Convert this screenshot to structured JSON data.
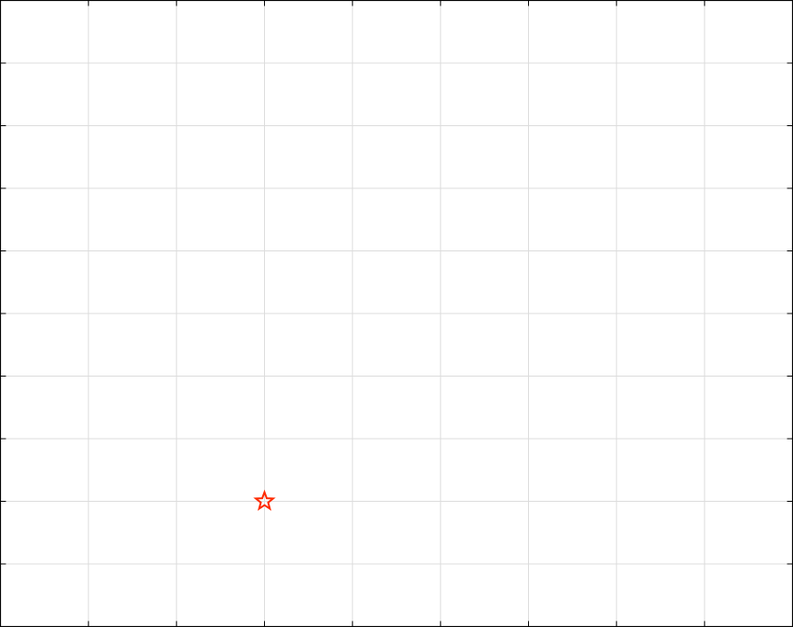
{
  "chart_data": {
    "type": "scatter",
    "title": "",
    "xlabel": "",
    "ylabel": "",
    "xlim": [
      0,
      9
    ],
    "ylim": [
      0,
      10
    ],
    "grid": true,
    "series": [
      {
        "marker": "star",
        "color": "#ff2a00",
        "points": [
          {
            "x": 3,
            "y": 2
          }
        ]
      }
    ]
  }
}
